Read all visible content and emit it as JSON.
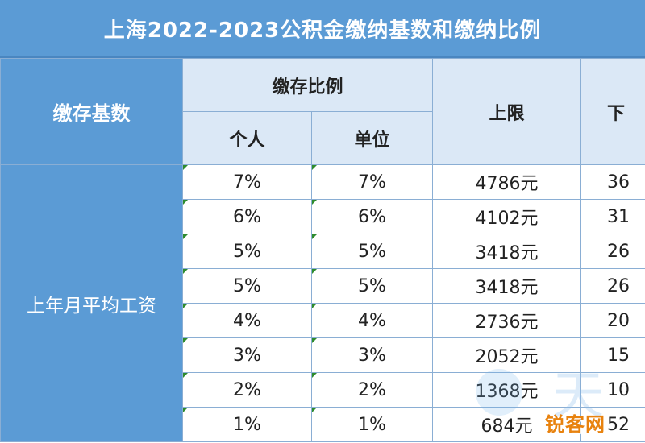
{
  "title": "上海2022-2023公积金缴纳基数和缴纳比例",
  "header": {
    "base_label": "缴存基数",
    "ratio_group": "缴存比例",
    "personal": "个人",
    "unit": "单位",
    "upper": "上限",
    "lower_partial": "下"
  },
  "base_value": "上年月平均工资",
  "rows": [
    {
      "personal": "7%",
      "unit": "7%",
      "upper": "4786元",
      "lower_partial": "36"
    },
    {
      "personal": "6%",
      "unit": "6%",
      "upper": "4102元",
      "lower_partial": "31"
    },
    {
      "personal": "5%",
      "unit": "5%",
      "upper": "3418元",
      "lower_partial": "26"
    },
    {
      "personal": "5%",
      "unit": "5%",
      "upper": "3418元",
      "lower_partial": "26"
    },
    {
      "personal": "4%",
      "unit": "4%",
      "upper": "2736元",
      "lower_partial": "20"
    },
    {
      "personal": "3%",
      "unit": "3%",
      "upper": "2052元",
      "lower_partial": "15"
    },
    {
      "personal": "2%",
      "unit": "2%",
      "upper": "1368元",
      "lower_partial": "10"
    },
    {
      "personal": "1%",
      "unit": "1%",
      "upper": "684元",
      "lower_partial": "52"
    }
  ],
  "watermark": {
    "text": "天",
    "logo": "锐客网"
  },
  "colors": {
    "header_blue": "#5b9bd5",
    "header_light": "#dbe8f6",
    "border": "#8aaed4",
    "logo_orange": "#e8820e"
  }
}
